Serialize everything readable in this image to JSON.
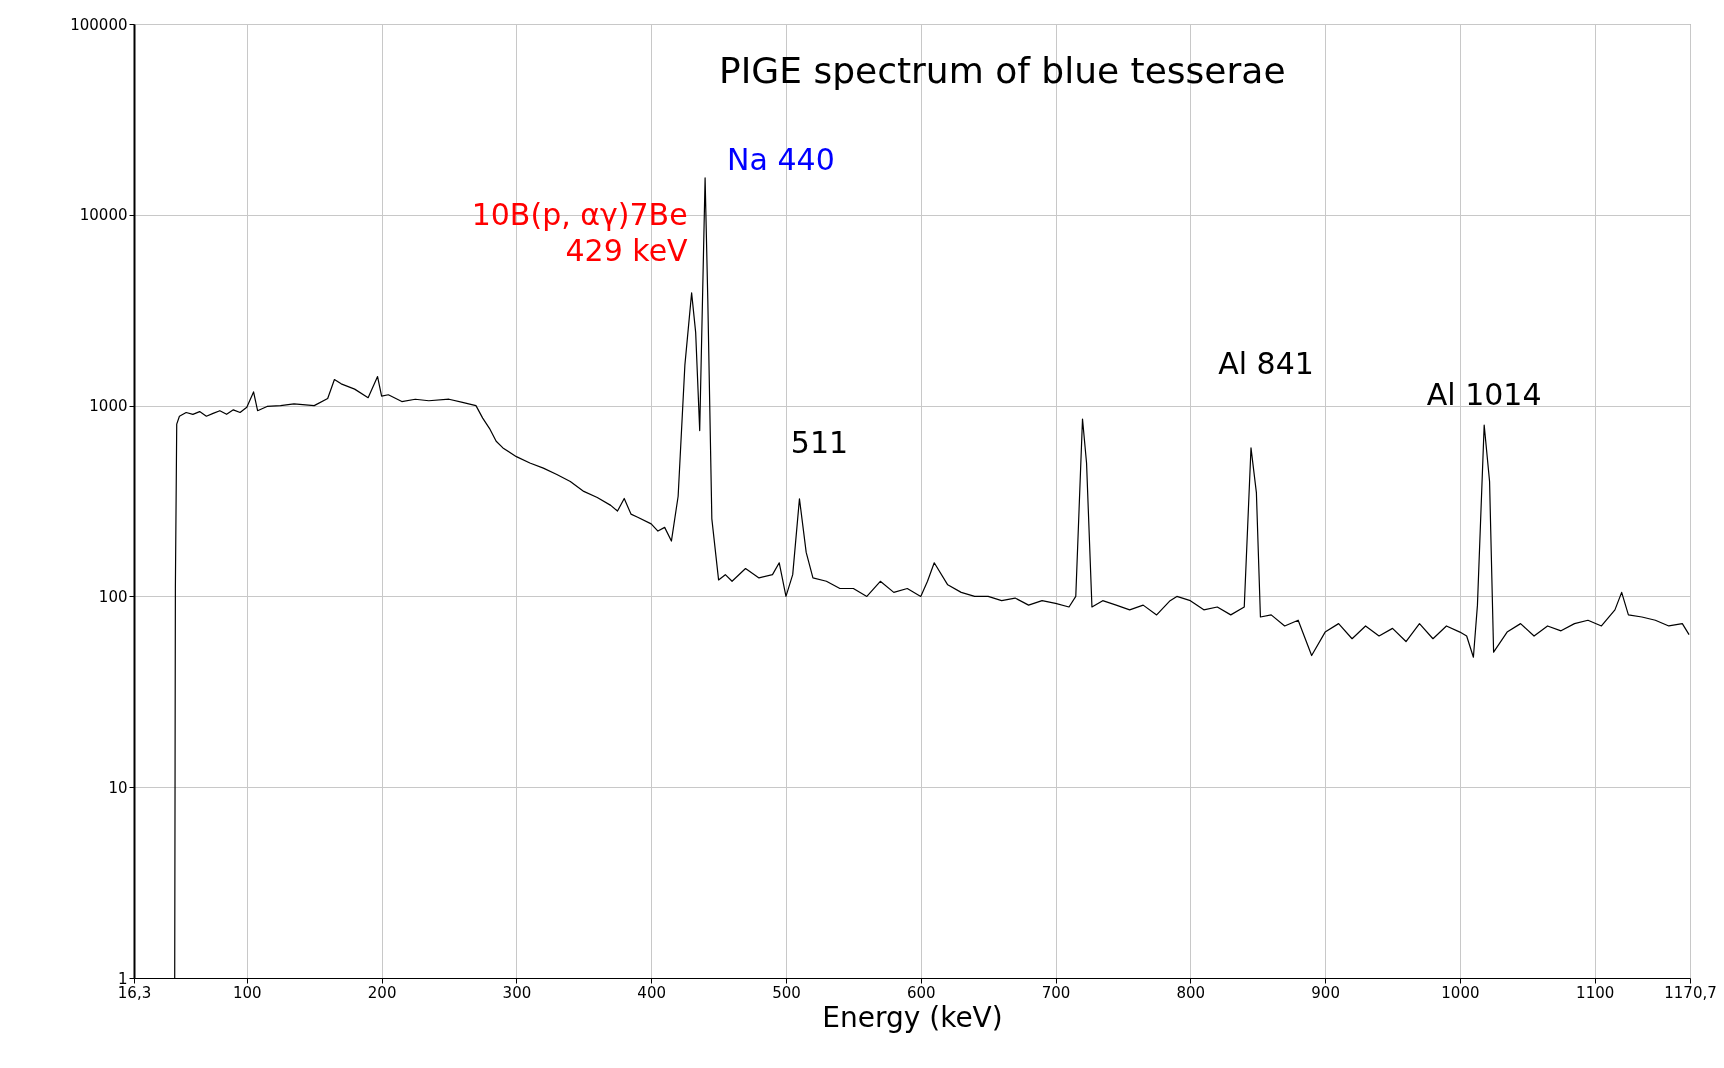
{
  "chart_data": {
    "type": "line",
    "title": "PIGE spectrum of blue tesserae",
    "xlabel": "Energy (keV)",
    "log": "y",
    "grid": true,
    "marker": "none",
    "line_style": "solid",
    "xlim": [
      16.3,
      1170.7
    ],
    "xticks": [
      {
        "value": 16.3,
        "label": "16,3"
      },
      100,
      200,
      300,
      400,
      500,
      600,
      700,
      800,
      900,
      1000,
      1100,
      {
        "value": 1170.7,
        "label": "1170,7"
      }
    ],
    "ylim": [
      1,
      100000
    ],
    "yticks": [
      1,
      10,
      100,
      1000,
      10000,
      100000
    ],
    "series": [
      {
        "color": "#000000",
        "x": [
          46.5,
          47,
          48,
          50,
          55,
          60,
          65,
          70,
          75,
          80,
          85,
          90,
          95,
          100,
          105,
          108,
          115,
          125,
          135,
          150,
          160,
          165,
          170,
          180,
          190,
          197,
          200,
          205,
          215,
          225,
          235,
          250,
          260,
          270,
          275,
          280,
          285,
          290,
          300,
          310,
          320,
          330,
          340,
          350,
          360,
          370,
          375,
          380,
          385,
          390,
          400,
          405,
          410,
          415,
          420,
          425,
          430,
          433,
          436,
          440,
          442,
          445,
          450,
          455,
          460,
          470,
          480,
          490,
          495,
          500,
          505,
          510,
          515,
          520,
          530,
          540,
          550,
          560,
          570,
          580,
          590,
          600,
          605,
          610,
          620,
          630,
          640,
          650,
          660,
          670,
          680,
          690,
          700,
          710,
          715,
          720,
          723,
          727,
          735,
          745,
          755,
          765,
          775,
          785,
          790,
          800,
          810,
          820,
          830,
          840,
          845,
          849,
          852,
          860,
          870,
          880,
          890,
          900,
          910,
          920,
          930,
          940,
          950,
          960,
          970,
          980,
          990,
          1000,
          1005,
          1010,
          1013,
          1018,
          1022,
          1025,
          1035,
          1045,
          1055,
          1065,
          1075,
          1085,
          1095,
          1105,
          1115,
          1120,
          1125,
          1135,
          1145,
          1155,
          1165,
          1170
        ],
        "values": [
          1,
          110,
          800,
          880,
          920,
          900,
          930,
          880,
          910,
          940,
          900,
          950,
          920,
          980,
          1180,
          940,
          990,
          1000,
          1020,
          1000,
          1090,
          1370,
          1300,
          1220,
          1100,
          1420,
          1120,
          1140,
          1050,
          1080,
          1060,
          1080,
          1040,
          1000,
          860,
          760,
          650,
          600,
          540,
          500,
          470,
          435,
          400,
          355,
          330,
          300,
          280,
          326,
          270,
          260,
          240,
          220,
          230,
          195,
          335,
          1630,
          3900,
          2420,
          740,
          15600,
          3600,
          255,
          122,
          130,
          120,
          140,
          125,
          130,
          150,
          100,
          130,
          325,
          170,
          125,
          120,
          110,
          110,
          100,
          120,
          105,
          110,
          100,
          120,
          150,
          115,
          105,
          100,
          100,
          95,
          98,
          90,
          95,
          92,
          88,
          100,
          850,
          500,
          88,
          95,
          90,
          85,
          90,
          80,
          95,
          100,
          95,
          85,
          88,
          80,
          88,
          600,
          350,
          78,
          80,
          70,
          75,
          49,
          65,
          72,
          60,
          70,
          62,
          68,
          58,
          72,
          60,
          70,
          65,
          62,
          48,
          90,
          790,
          400,
          51,
          65,
          72,
          62,
          70,
          66,
          72,
          75,
          70,
          85,
          105,
          80,
          78,
          75,
          70,
          72,
          63
        ]
      }
    ],
    "annotations": [
      {
        "text": "Na 440",
        "x": 440,
        "y": 15600
      },
      {
        "text": "10B(p, αγ)7Be\n429 keV",
        "x": 430,
        "y": 3900
      },
      {
        "text": "511",
        "x": 510,
        "y": 325
      },
      {
        "text": "Al 841",
        "x": 845,
        "y": 600
      },
      {
        "text": "Al 1014",
        "x": 1018,
        "y": 790
      }
    ]
  }
}
